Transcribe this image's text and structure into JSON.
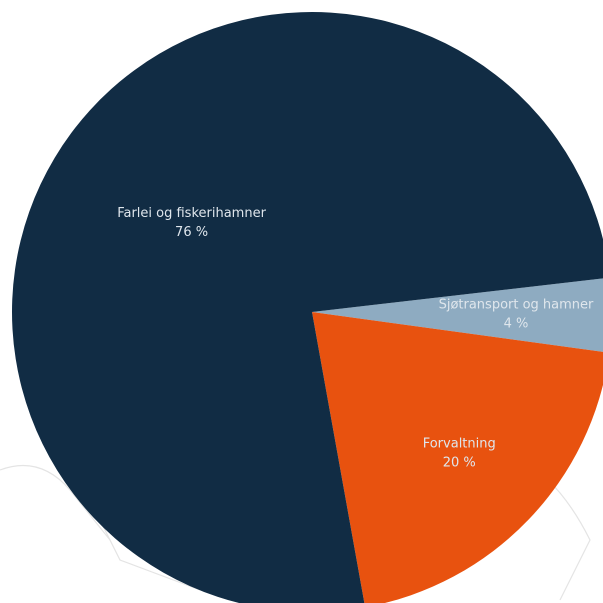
{
  "chart_data": {
    "type": "pie",
    "categories": [
      "Sjøtransport og hamner",
      "Forvaltning",
      "Farlei og fiskerihamner"
    ],
    "values": [
      4,
      20,
      76
    ],
    "value_labels": [
      "4 %",
      "20 %",
      "76 %"
    ],
    "colors": [
      "#8eabc1",
      "#e8520f",
      "#112c44"
    ]
  }
}
